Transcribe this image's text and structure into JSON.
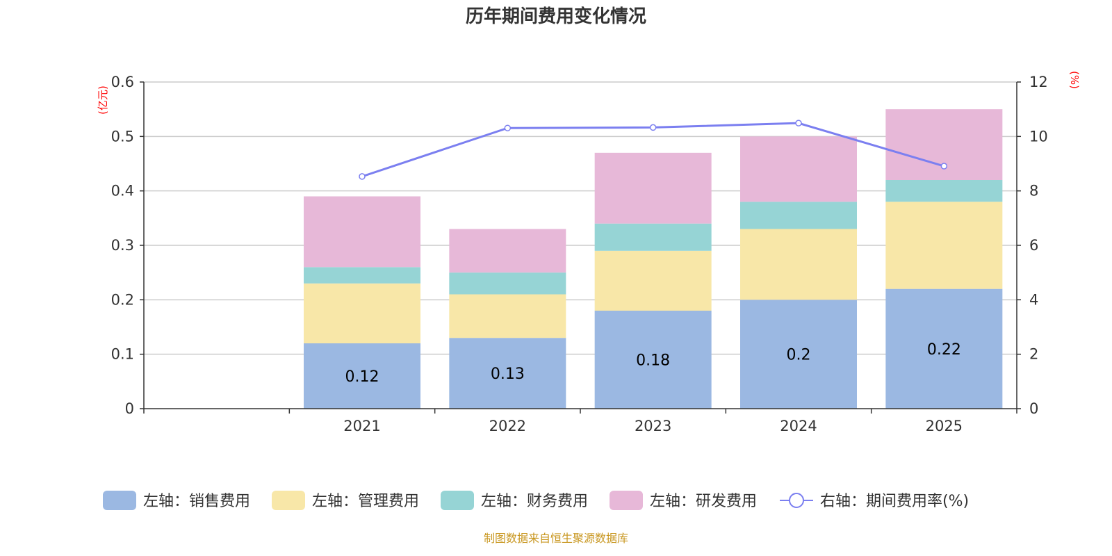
{
  "chart_data": {
    "type": "bar",
    "stacked": true,
    "title": "历年期间费用变化情况",
    "categories": [
      "",
      "2021",
      "2022",
      "2023",
      "2024",
      "2025"
    ],
    "left_axis": {
      "unit_label": "(亿元)",
      "ylim": [
        0,
        0.6
      ],
      "ticks": [
        "0",
        "0.1",
        "0.2",
        "0.3",
        "0.4",
        "0.5",
        "0.6"
      ],
      "tick_values": [
        0,
        0.1,
        0.2,
        0.3,
        0.4,
        0.5,
        0.6
      ]
    },
    "right_axis": {
      "unit_label": "(%)",
      "ylim": [
        0,
        12
      ],
      "ticks": [
        "0",
        "2",
        "4",
        "6",
        "8",
        "10",
        "12"
      ],
      "tick_values": [
        0,
        2,
        4,
        6,
        8,
        10,
        12
      ]
    },
    "grid": true,
    "legend_position": "bottom",
    "series": [
      {
        "name": "左轴：销售费用",
        "type": "bar",
        "axis": "left",
        "color": "#9bb8e2",
        "values": [
          null,
          0.12,
          0.13,
          0.18,
          0.2,
          0.22
        ],
        "show_labels": true,
        "labels": [
          "",
          "0.12",
          "0.13",
          "0.18",
          "0.2",
          "0.22"
        ]
      },
      {
        "name": "左轴：管理费用",
        "type": "bar",
        "axis": "left",
        "color": "#f8e7a8",
        "values": [
          null,
          0.11,
          0.08,
          0.11,
          0.13,
          0.16
        ]
      },
      {
        "name": "左轴：财务费用",
        "type": "bar",
        "axis": "left",
        "color": "#96d4d5",
        "values": [
          null,
          0.03,
          0.04,
          0.05,
          0.05,
          0.04
        ]
      },
      {
        "name": "左轴：研发费用",
        "type": "bar",
        "axis": "left",
        "color": "#e7b8d8",
        "values": [
          null,
          0.13,
          0.08,
          0.13,
          0.12,
          0.13
        ]
      },
      {
        "name": "右轴：期间费用率(%)",
        "type": "line",
        "axis": "right",
        "color": "#7b7ff0",
        "values": [
          null,
          8.53,
          10.31,
          10.33,
          10.49,
          8.91
        ]
      }
    ],
    "source": "制图数据来自恒生聚源数据库"
  }
}
